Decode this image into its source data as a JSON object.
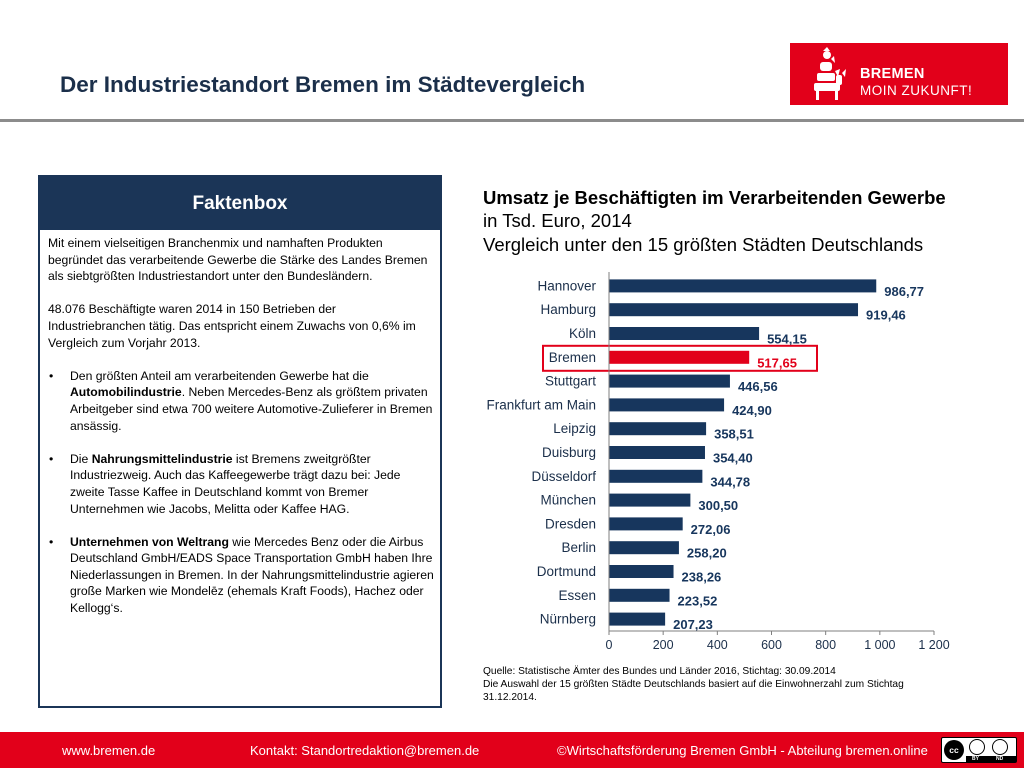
{
  "header": {
    "title": "Der Industriestandort Bremen im Städtevergleich"
  },
  "logo": {
    "line1": "BREMEN",
    "line2": "MOIN ZUKUNFT!",
    "color": "#e2001a"
  },
  "faktenbox": {
    "title": "Faktenbox",
    "intro": "Mit einem vielseitigen Branchenmix und namhaften Produkten begründet das verarbeitende Gewerbe die Stärke des Landes Bremen als siebtgrößten Industriestandort unter den Bundesländern.",
    "stat": "48.076 Beschäftigte waren 2014 in 150 Betrieben der Industriebranchen tätig. Das entspricht einem Zuwachs von 0,6% im Vergleich zum Vorjahr 2013.",
    "bullets": [
      {
        "dot": "•",
        "pre": "Den größten Anteil am verarbeitenden Gewerbe hat die ",
        "bold": "Automobilindustrie",
        "post": ". Neben Mercedes-Benz als größtem privaten Arbeitgeber sind etwa 700 weitere Automotive-Zulieferer in Bremen ansässig."
      },
      {
        "dot": "•",
        "pre": "Die ",
        "bold": "Nahrungsmittelindustrie",
        "post": " ist Bremens zweitgrößter Industriezweig. Auch das Kaffeegewerbe trägt dazu bei: Jede zweite Tasse Kaffee in Deutschland kommt von Bremer Unternehmen wie Jacobs, Melitta oder Kaffee HAG."
      },
      {
        "dot": "•",
        "pre": "",
        "bold": "Unternehmen von Weltrang",
        "post": " wie Mercedes Benz oder die Airbus Deutschland GmbH/EADS Space Transportation GmbH haben Ihre Niederlassungen in Bremen. In der Nahrungsmittelindustrie agieren große Marken wie Mondelēz (ehemals Kraft Foods), Hachez oder Kellogg‘s."
      }
    ]
  },
  "chart_data": {
    "type": "bar",
    "orientation": "horizontal",
    "title": "Umsatz je Beschäftigten im Verarbeitenden Gewerbe",
    "subtitle1": "in Tsd. Euro, 2014",
    "subtitle2": "Vergleich unter den 15 größten Städten Deutschlands",
    "categories": [
      "Hannover",
      "Hamburg",
      "Köln",
      "Bremen",
      "Stuttgart",
      "Frankfurt am Main",
      "Leipzig",
      "Duisburg",
      "Düsseldorf",
      "München",
      "Dresden",
      "Berlin",
      "Dortmund",
      "Essen",
      "Nürnberg"
    ],
    "values": [
      986.77,
      919.46,
      554.15,
      517.65,
      446.56,
      424.9,
      358.51,
      354.4,
      344.78,
      300.5,
      272.06,
      258.2,
      238.26,
      223.52,
      207.23
    ],
    "value_labels": [
      "986,77",
      "919,46",
      "554,15",
      "517,65",
      "446,56",
      "424,90",
      "358,51",
      "354,40",
      "344,78",
      "300,50",
      "272,06",
      "258,20",
      "238,26",
      "223,52",
      "207,23"
    ],
    "highlight": "Bremen",
    "xlim": [
      0,
      1200
    ],
    "xticks": [
      0,
      200,
      400,
      600,
      800,
      1000,
      1200
    ],
    "xtick_labels": [
      "0",
      "200",
      "400",
      "600",
      "800",
      "1 000",
      "1 200"
    ],
    "bar_color": "#17365d",
    "highlight_color": "#e2001a",
    "grid": false
  },
  "source": {
    "line1": "Quelle: Statistische Ämter des Bundes und Länder 2016, Stichtag: 30.09.2014",
    "line2": "Die Auswahl der 15 größten Städte Deutschlands basiert auf die Einwohnerzahl zum Stichtag",
    "line3": "31.12.2014."
  },
  "footer": {
    "website": "www.bremen.de",
    "contact": "Kontakt: Standortredaktion@bremen.de",
    "copyright": "©Wirtschaftsförderung Bremen GmbH - Abteilung bremen.online",
    "license_badge": {
      "icon": "cc-by-nd-icon",
      "label_by": "BY",
      "label_nd": "ND"
    }
  }
}
